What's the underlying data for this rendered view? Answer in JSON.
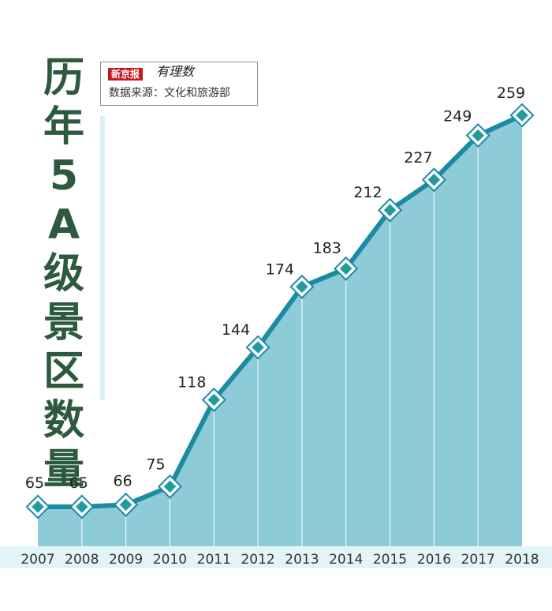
{
  "title_chars": [
    "历",
    "年",
    "5",
    "A",
    "级",
    "景",
    "区",
    "数",
    "量"
  ],
  "source": {
    "logo_badge": "新京报",
    "logo_script": "有理数",
    "text": "数据来源：文化和旅游部"
  },
  "colors": {
    "area": "#8ecbd8",
    "line": "#1b8ba3",
    "marker_fill": "#1f9b9e",
    "band": "#e3f4f8",
    "title": "#2d5a3d",
    "gridline": "#ffffff"
  },
  "chart_data": {
    "type": "area",
    "title": "历年5A级景区数量",
    "categories": [
      "2007",
      "2008",
      "2009",
      "2010",
      "2011",
      "2012",
      "2013",
      "2014",
      "2015",
      "2016",
      "2017",
      "2018"
    ],
    "values": [
      65,
      65,
      66,
      75,
      118,
      144,
      174,
      183,
      212,
      227,
      249,
      259
    ],
    "data_labels": [
      "65",
      "65",
      "66",
      "75",
      "118",
      "144",
      "174",
      "183",
      "212",
      "227",
      "249",
      "259"
    ],
    "xlabel": "",
    "ylabel": "",
    "grid": "vertical dividers at each year",
    "legend": "none"
  }
}
